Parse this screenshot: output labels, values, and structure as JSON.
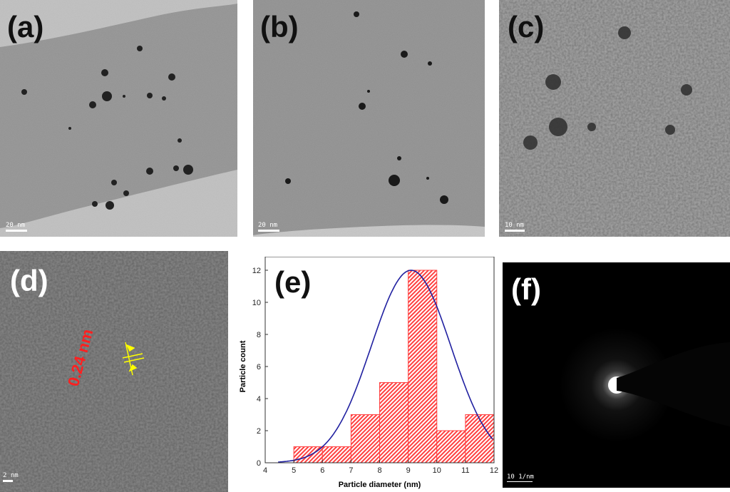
{
  "panels": {
    "a": {
      "label": "(a)",
      "scale": "20 nm"
    },
    "b": {
      "label": "(b)",
      "scale": "20 nm"
    },
    "c": {
      "label": "(c)",
      "scale": "10 nm"
    },
    "d": {
      "label": "(d)",
      "scale": "2 nm",
      "lattice_spacing": "0.24 nm"
    },
    "e": {
      "label": "(e)"
    },
    "f": {
      "label": "(f)",
      "scale": "10 1/nm"
    }
  },
  "colors": {
    "hist_fill": "#ff4040",
    "fit_line": "#2020a0",
    "label_red": "#ff2020",
    "marker_yellow": "#ffff00"
  },
  "chart_data": {
    "type": "bar",
    "title": "",
    "xlabel": "Particle diameter (nm)",
    "ylabel": "Particle count",
    "xlim": [
      4,
      12
    ],
    "ylim": [
      0,
      12
    ],
    "xticks": [
      "4",
      "5",
      "6",
      "7",
      "8",
      "9",
      "10",
      "11",
      "12"
    ],
    "yticks": [
      "0",
      "2",
      "4",
      "6",
      "8",
      "10",
      "12"
    ],
    "bins": [
      [
        5,
        6
      ],
      [
        6,
        7
      ],
      [
        7,
        8
      ],
      [
        8,
        9
      ],
      [
        9,
        10
      ],
      [
        10,
        11
      ],
      [
        11,
        12
      ]
    ],
    "values": [
      1,
      1,
      3,
      5,
      12,
      2,
      3
    ],
    "fit": {
      "type": "gaussian",
      "peak": 12,
      "center": 9.1,
      "sigma": 1.39,
      "x_start": 4.45
    }
  }
}
